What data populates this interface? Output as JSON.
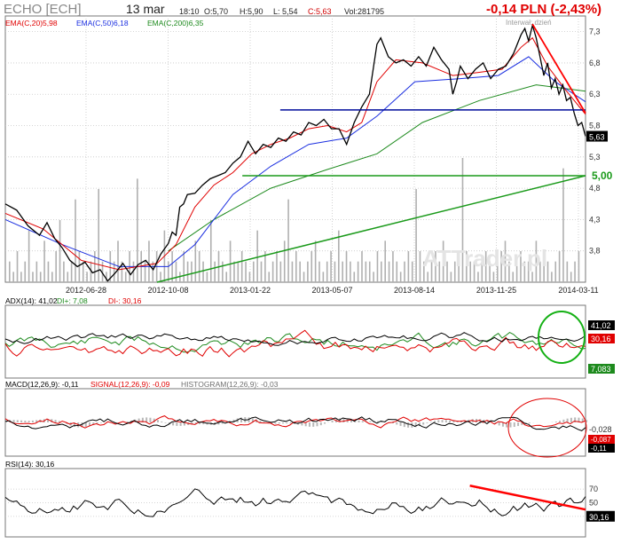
{
  "header": {
    "ticker": "ECHO [ECH]",
    "date": "13 mar",
    "time": "18:10",
    "open_label": "O:5,70",
    "high_label": "H:5,90",
    "low_label": "L: 5,54",
    "close_label": "C:5,63",
    "volume_label": "Vol:281795",
    "change": "-0,14 PLN (-2,43%)",
    "interval": "Interwał: dzień",
    "watermark": "ATTrader.pl"
  },
  "colors": {
    "price": "#000000",
    "ema20": "#e00000",
    "ema50": "#1a2ee0",
    "ema200": "#1d8a1d",
    "trend_red": "#ff0000",
    "trend_blue": "#000c9c",
    "trend_green": "#1a9a1a",
    "volume": "#b0b0b0",
    "grid": "#c8c8c8"
  },
  "chart_data": [
    {
      "type": "line",
      "panel": "price",
      "legend": [
        {
          "text": "EMA(C,20)5,98",
          "color": "#e00000"
        },
        {
          "text": "EMA(C,50)6,18",
          "color": "#1a2ee0"
        },
        {
          "text": "EMA(C,200)6,35",
          "color": "#1d8a1d"
        }
      ],
      "x_labels": [
        "2012-06-28",
        "2012-10-08",
        "2013-01-22",
        "2013-05-07",
        "2013-08-14",
        "2013-11-25",
        "2014-03-11"
      ],
      "y_ticks": [
        "7,3",
        "6,8",
        "6,3",
        "5,8",
        "5,3",
        "4,8",
        "4,3",
        "3,8"
      ],
      "last_value": "5,63",
      "level_label": "5,00",
      "price_series": [
        [
          0,
          4.55
        ],
        [
          6,
          4.45
        ],
        [
          12,
          4.2
        ],
        [
          18,
          4.05
        ],
        [
          22,
          4.25
        ],
        [
          26,
          4.0
        ],
        [
          30,
          3.85
        ],
        [
          34,
          3.65
        ],
        [
          38,
          3.55
        ],
        [
          42,
          3.62
        ],
        [
          46,
          3.45
        ],
        [
          50,
          3.5
        ],
        [
          54,
          3.32
        ],
        [
          58,
          3.45
        ],
        [
          62,
          3.6
        ],
        [
          66,
          3.42
        ],
        [
          70,
          3.58
        ],
        [
          74,
          3.65
        ],
        [
          78,
          3.5
        ],
        [
          82,
          3.75
        ],
        [
          86,
          3.92
        ],
        [
          88,
          4.1
        ],
        [
          90,
          4.05
        ],
        [
          92,
          4.5
        ],
        [
          94,
          4.55
        ],
        [
          96,
          4.7
        ],
        [
          100,
          4.72
        ],
        [
          104,
          4.85
        ],
        [
          108,
          4.95
        ],
        [
          112,
          5.0
        ],
        [
          116,
          5.05
        ],
        [
          120,
          5.2
        ],
        [
          124,
          5.3
        ],
        [
          128,
          5.55
        ],
        [
          132,
          5.35
        ],
        [
          136,
          5.5
        ],
        [
          140,
          5.45
        ],
        [
          144,
          5.6
        ],
        [
          148,
          5.55
        ],
        [
          152,
          5.7
        ],
        [
          156,
          5.65
        ],
        [
          160,
          5.85
        ],
        [
          164,
          5.8
        ],
        [
          168,
          5.9
        ],
        [
          172,
          5.75
        ],
        [
          176,
          5.75
        ],
        [
          180,
          5.5
        ],
        [
          184,
          5.85
        ],
        [
          188,
          6.1
        ],
        [
          192,
          6.3
        ],
        [
          196,
          7.1
        ],
        [
          198,
          7.2
        ],
        [
          202,
          6.9
        ],
        [
          206,
          6.8
        ],
        [
          210,
          6.85
        ],
        [
          214,
          6.75
        ],
        [
          218,
          6.9
        ],
        [
          222,
          6.75
        ],
        [
          226,
          7.05
        ],
        [
          230,
          6.85
        ],
        [
          234,
          6.7
        ],
        [
          236,
          6.3
        ],
        [
          238,
          6.5
        ],
        [
          240,
          6.75
        ],
        [
          244,
          6.55
        ],
        [
          248,
          6.7
        ],
        [
          252,
          6.8
        ],
        [
          256,
          6.55
        ],
        [
          260,
          6.7
        ],
        [
          264,
          6.75
        ],
        [
          268,
          6.95
        ],
        [
          272,
          7.25
        ],
        [
          274,
          7.35
        ],
        [
          276,
          7.15
        ],
        [
          278,
          7.4
        ],
        [
          280,
          7.2
        ],
        [
          282,
          6.9
        ],
        [
          284,
          6.6
        ],
        [
          286,
          6.8
        ],
        [
          288,
          6.4
        ],
        [
          290,
          6.55
        ],
        [
          292,
          6.3
        ],
        [
          294,
          6.45
        ],
        [
          296,
          6.2
        ],
        [
          298,
          6.25
        ],
        [
          300,
          6.0
        ],
        [
          302,
          5.8
        ],
        [
          304,
          5.85
        ],
        [
          306,
          5.63
        ]
      ],
      "ema20_series": [
        [
          0,
          4.4
        ],
        [
          20,
          4.15
        ],
        [
          40,
          3.65
        ],
        [
          60,
          3.5
        ],
        [
          80,
          3.6
        ],
        [
          90,
          3.9
        ],
        [
          100,
          4.5
        ],
        [
          110,
          4.85
        ],
        [
          120,
          5.05
        ],
        [
          130,
          5.35
        ],
        [
          140,
          5.5
        ],
        [
          150,
          5.6
        ],
        [
          160,
          5.75
        ],
        [
          170,
          5.8
        ],
        [
          180,
          5.7
        ],
        [
          188,
          5.85
        ],
        [
          196,
          6.5
        ],
        [
          206,
          6.85
        ],
        [
          220,
          6.8
        ],
        [
          236,
          6.6
        ],
        [
          250,
          6.65
        ],
        [
          262,
          6.7
        ],
        [
          272,
          7.05
        ],
        [
          278,
          7.2
        ],
        [
          286,
          6.75
        ],
        [
          296,
          6.35
        ],
        [
          306,
          5.98
        ]
      ],
      "ema50_series": [
        [
          0,
          4.3
        ],
        [
          30,
          3.9
        ],
        [
          60,
          3.55
        ],
        [
          86,
          3.55
        ],
        [
          100,
          3.9
        ],
        [
          120,
          4.7
        ],
        [
          140,
          5.15
        ],
        [
          160,
          5.5
        ],
        [
          180,
          5.6
        ],
        [
          196,
          5.95
        ],
        [
          216,
          6.5
        ],
        [
          240,
          6.55
        ],
        [
          260,
          6.6
        ],
        [
          276,
          6.9
        ],
        [
          290,
          6.5
        ],
        [
          306,
          6.18
        ]
      ],
      "ema200_series": [
        [
          86,
          3.8
        ],
        [
          110,
          4.3
        ],
        [
          140,
          4.8
        ],
        [
          170,
          5.1
        ],
        [
          196,
          5.35
        ],
        [
          220,
          5.85
        ],
        [
          250,
          6.2
        ],
        [
          280,
          6.45
        ],
        [
          306,
          6.35
        ]
      ]
    },
    {
      "type": "bar",
      "panel": "volume",
      "values": [
        2,
        1,
        3,
        1,
        2,
        5,
        1,
        2,
        1,
        4,
        2,
        1,
        3,
        6,
        2,
        1,
        2,
        8,
        3,
        2,
        1,
        2,
        3,
        9,
        2,
        1,
        3,
        2,
        4,
        2,
        1,
        3,
        2,
        10,
        3,
        2,
        4,
        2,
        3,
        1,
        5,
        2,
        3,
        2,
        1,
        3,
        2,
        2,
        4,
        3,
        2,
        1,
        6,
        2,
        3,
        2,
        1,
        4,
        2,
        2,
        3,
        2,
        1,
        2,
        5,
        2,
        3,
        1,
        2,
        3,
        2,
        4,
        8,
        2,
        3,
        2,
        1,
        2,
        3,
        4,
        2,
        1,
        2,
        3,
        2,
        5,
        2,
        3,
        2,
        1,
        2,
        3,
        2,
        2,
        1,
        3,
        2,
        4,
        2,
        3,
        2,
        1,
        2,
        3,
        2,
        9,
        3,
        2,
        1,
        2,
        3,
        2,
        4,
        2,
        1,
        2,
        3,
        12,
        3,
        2,
        2,
        1,
        2,
        3,
        2,
        1,
        2,
        3,
        4,
        2,
        1,
        2,
        3,
        2,
        2,
        1,
        4,
        2,
        3,
        2,
        1,
        2,
        3,
        11,
        2,
        1,
        2,
        3
      ]
    },
    {
      "type": "line",
      "panel": "adx",
      "legend": [
        {
          "text": "ADX(14): 41,02",
          "color": "#000000"
        },
        {
          "text": "DI+: 7,08",
          "color": "#1d8a1d"
        },
        {
          "text": "DI-: 30,16",
          "color": "#e00000"
        }
      ],
      "last_labels": [
        "41,02",
        "30,16",
        "7,083"
      ]
    },
    {
      "type": "line",
      "panel": "macd",
      "legend": [
        {
          "text": "MACD(12,26,9): -0,11",
          "color": "#000000"
        },
        {
          "text": "SIGNAL(12,26,9): -0,09",
          "color": "#e00000"
        },
        {
          "text": "HISTOGRAM(12,26,9): -0,03",
          "color": "#707070"
        }
      ],
      "last_labels": [
        "-0,028",
        "-0,087",
        "-0,11"
      ]
    },
    {
      "type": "line",
      "panel": "rsi",
      "legend": [
        {
          "text": "RSI(14): 30,16",
          "color": "#000000"
        }
      ],
      "y_ticks": [
        "70",
        "50",
        "30"
      ],
      "last_value": "30,16"
    }
  ]
}
